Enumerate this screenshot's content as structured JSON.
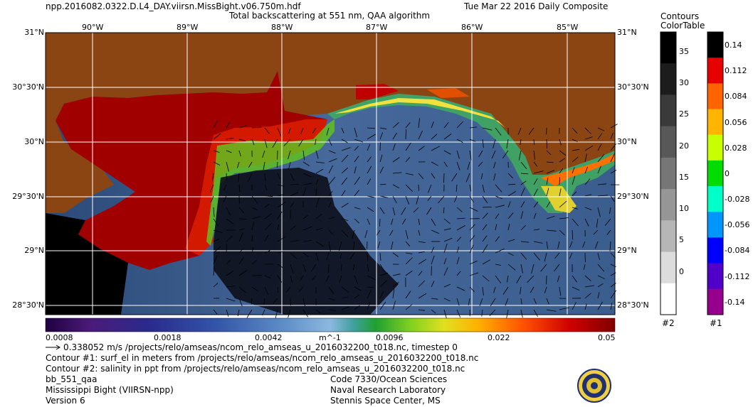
{
  "header": {
    "filename": "npp.2016082.0322.D.L4_DAY.viirsn.MissBight.v06.750m.hdf",
    "date": "Tue Mar 22 2016 Daily Composite",
    "title": "Total backscattering at 551 nm, QAA algorithm"
  },
  "map": {
    "lon_labels_top": [
      "90°W",
      "89°W",
      "88°W",
      "87°W",
      "86°W",
      "85°W"
    ],
    "lat_labels": [
      "31°N",
      "30°30'N",
      "30°N",
      "29°30'N",
      "29°N",
      "28°30'N"
    ],
    "colors": {
      "land": "#8b4513",
      "no_data": "#000000",
      "ocean": "#3c5f8c",
      "turbid": "#a00000"
    }
  },
  "colorbar": {
    "ticks": [
      "0.0008",
      "0.0018",
      "0.0042",
      "m^-1",
      "0.0096",
      "0.022",
      "0.05"
    ]
  },
  "contours_colortable": {
    "title1": "Contours",
    "title2": "ColorTable",
    "left_ticks": [
      "35",
      "30",
      "25",
      "20",
      "15",
      "10",
      "5",
      "0"
    ],
    "left_label": "#2",
    "right_ticks": [
      "0.14",
      "0.112",
      "0.084",
      "0.056",
      "0.028",
      "0",
      "-0.028",
      "-0.056",
      "-0.084",
      "-0.112",
      "-0.14"
    ],
    "right_label": "#1",
    "left_colors": [
      "#000000",
      "#1c1c1c",
      "#3a3a3a",
      "#585858",
      "#767676",
      "#969696",
      "#b6b6b6",
      "#dcdcdc",
      "#ffffff"
    ],
    "right_colors": [
      "#000000",
      "#e60000",
      "#ff6400",
      "#ffb400",
      "#c8ff00",
      "#00dc00",
      "#00ffc8",
      "#0096ff",
      "#0000ff",
      "#5000c8",
      "#96008c"
    ]
  },
  "footer": {
    "vector": "0.338052 m/s /projects/relo/amseas/ncom_relo_amseas_u_2016032200_t018.nc, timestep 0",
    "contour1": "Contour #1: surf_el in meters from /projects/relo/amseas/ncom_relo_amseas_u_2016032200_t018.nc",
    "contour2": "Contour #2: salinity in ppt from /projects/relo/amseas/ncom_relo_amseas_u_2016032200_t018.nc",
    "product": "bb_551_qaa",
    "region": "Mississippi Bight (VIIRSN-npp)",
    "version": "Version 6",
    "org1": "Code 7330/Ocean Sciences",
    "org2": "Naval Research Laboratory",
    "org3": "Stennis Space Center, MS"
  }
}
